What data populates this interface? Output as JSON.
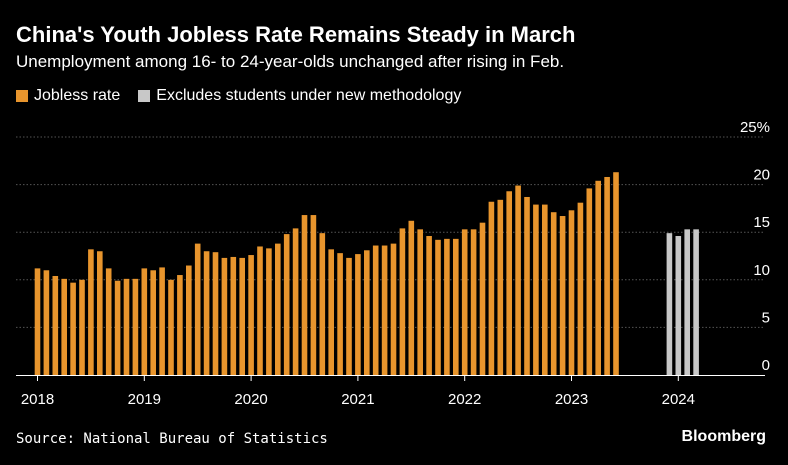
{
  "title": "China's Youth Jobless Rate Remains Steady in March",
  "subtitle": "Unemployment among 16- to 24-year-olds unchanged after rising in Feb.",
  "source": "Source: National Bureau of Statistics",
  "brand": "Bloomberg",
  "colors": {
    "jobless": "#e8952d",
    "excludes": "#c8c8c8",
    "grid": "#555555"
  },
  "chart_data": {
    "type": "bar",
    "ylim": [
      0,
      25
    ],
    "y_ticks": [
      {
        "value": 0,
        "label": "0"
      },
      {
        "value": 5,
        "label": "5"
      },
      {
        "value": 10,
        "label": "10"
      },
      {
        "value": 15,
        "label": "15"
      },
      {
        "value": 20,
        "label": "20"
      },
      {
        "value": 25,
        "label": "25%"
      }
    ],
    "x_ticks": [
      {
        "year": 2018,
        "label": "2018"
      },
      {
        "year": 2019,
        "label": "2019"
      },
      {
        "year": 2020,
        "label": "2020"
      },
      {
        "year": 2021,
        "label": "2021"
      },
      {
        "year": 2022,
        "label": "2022"
      },
      {
        "year": 2023,
        "label": "2023"
      },
      {
        "year": 2024,
        "label": "2024"
      }
    ],
    "grid": true,
    "legend_position": "top-left",
    "series": [
      {
        "name": "Jobless rate",
        "color": "#e8952d",
        "points": [
          {
            "x": "2018-01",
            "y": 11.2
          },
          {
            "x": "2018-02",
            "y": 11.0
          },
          {
            "x": "2018-03",
            "y": 10.4
          },
          {
            "x": "2018-04",
            "y": 10.1
          },
          {
            "x": "2018-05",
            "y": 9.7
          },
          {
            "x": "2018-06",
            "y": 10.0
          },
          {
            "x": "2018-07",
            "y": 13.2
          },
          {
            "x": "2018-08",
            "y": 13.0
          },
          {
            "x": "2018-09",
            "y": 11.2
          },
          {
            "x": "2018-10",
            "y": 9.9
          },
          {
            "x": "2018-11",
            "y": 10.1
          },
          {
            "x": "2018-12",
            "y": 10.1
          },
          {
            "x": "2019-01",
            "y": 11.2
          },
          {
            "x": "2019-02",
            "y": 11.0
          },
          {
            "x": "2019-03",
            "y": 11.3
          },
          {
            "x": "2019-04",
            "y": 10.0
          },
          {
            "x": "2019-05",
            "y": 10.5
          },
          {
            "x": "2019-06",
            "y": 11.5
          },
          {
            "x": "2019-07",
            "y": 13.8
          },
          {
            "x": "2019-08",
            "y": 13.0
          },
          {
            "x": "2019-09",
            "y": 12.9
          },
          {
            "x": "2019-10",
            "y": 12.3
          },
          {
            "x": "2019-11",
            "y": 12.4
          },
          {
            "x": "2019-12",
            "y": 12.3
          },
          {
            "x": "2020-01",
            "y": 12.6
          },
          {
            "x": "2020-02",
            "y": 13.5
          },
          {
            "x": "2020-03",
            "y": 13.3
          },
          {
            "x": "2020-04",
            "y": 13.8
          },
          {
            "x": "2020-05",
            "y": 14.8
          },
          {
            "x": "2020-06",
            "y": 15.4
          },
          {
            "x": "2020-07",
            "y": 16.8
          },
          {
            "x": "2020-08",
            "y": 16.8
          },
          {
            "x": "2020-09",
            "y": 14.9
          },
          {
            "x": "2020-10",
            "y": 13.2
          },
          {
            "x": "2020-11",
            "y": 12.8
          },
          {
            "x": "2020-12",
            "y": 12.3
          },
          {
            "x": "2021-01",
            "y": 12.7
          },
          {
            "x": "2021-02",
            "y": 13.1
          },
          {
            "x": "2021-03",
            "y": 13.6
          },
          {
            "x": "2021-04",
            "y": 13.6
          },
          {
            "x": "2021-05",
            "y": 13.8
          },
          {
            "x": "2021-06",
            "y": 15.4
          },
          {
            "x": "2021-07",
            "y": 16.2
          },
          {
            "x": "2021-08",
            "y": 15.3
          },
          {
            "x": "2021-09",
            "y": 14.6
          },
          {
            "x": "2021-10",
            "y": 14.2
          },
          {
            "x": "2021-11",
            "y": 14.3
          },
          {
            "x": "2021-12",
            "y": 14.3
          },
          {
            "x": "2022-01",
            "y": 15.3
          },
          {
            "x": "2022-02",
            "y": 15.3
          },
          {
            "x": "2022-03",
            "y": 16.0
          },
          {
            "x": "2022-04",
            "y": 18.2
          },
          {
            "x": "2022-05",
            "y": 18.4
          },
          {
            "x": "2022-06",
            "y": 19.3
          },
          {
            "x": "2022-07",
            "y": 19.9
          },
          {
            "x": "2022-08",
            "y": 18.7
          },
          {
            "x": "2022-09",
            "y": 17.9
          },
          {
            "x": "2022-10",
            "y": 17.9
          },
          {
            "x": "2022-11",
            "y": 17.1
          },
          {
            "x": "2022-12",
            "y": 16.7
          },
          {
            "x": "2023-01",
            "y": 17.3
          },
          {
            "x": "2023-02",
            "y": 18.1
          },
          {
            "x": "2023-03",
            "y": 19.6
          },
          {
            "x": "2023-04",
            "y": 20.4
          },
          {
            "x": "2023-05",
            "y": 20.8
          },
          {
            "x": "2023-06",
            "y": 21.3
          }
        ]
      },
      {
        "name": "Excludes students under new methodology",
        "color": "#c8c8c8",
        "points": [
          {
            "x": "2023-12",
            "y": 14.9
          },
          {
            "x": "2024-01",
            "y": 14.6
          },
          {
            "x": "2024-02",
            "y": 15.3
          },
          {
            "x": "2024-03",
            "y": 15.3
          }
        ]
      }
    ]
  }
}
